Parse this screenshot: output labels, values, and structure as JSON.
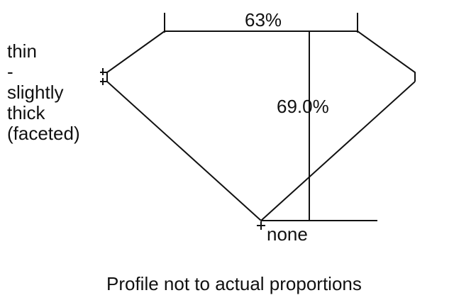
{
  "girdle_lines": [
    "thin",
    "-",
    "slightly",
    "thick",
    "(faceted)"
  ],
  "table_percent": "63%",
  "depth_percent": "69.0%",
  "culet": "none",
  "caption": "Profile not to actual proportions",
  "line_color": "#111111"
}
